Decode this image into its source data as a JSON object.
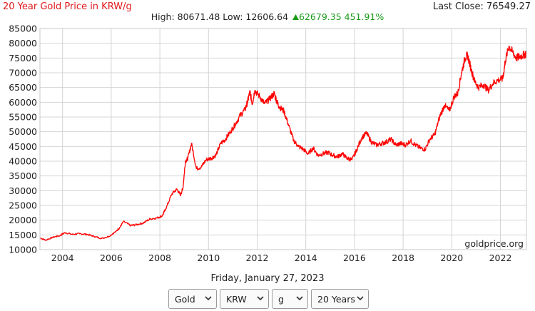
{
  "header": {
    "title": "20 Year Gold Price in KRW/g",
    "last_close": "Last Close: 76549.27",
    "high_low": "High: 80671.48 Low: 12606.64",
    "change": "62679.35 451.91%"
  },
  "chart_data": {
    "type": "line",
    "title": "20 Year Gold Price in KRW/g",
    "xlabel": "",
    "ylabel": "",
    "ylim": [
      10000,
      85000
    ],
    "xlim": [
      2003.07,
      2023.07
    ],
    "y_ticks": [
      "10000",
      "15000",
      "20000",
      "25000",
      "30000",
      "35000",
      "40000",
      "45000",
      "50000",
      "55000",
      "60000",
      "65000",
      "70000",
      "75000",
      "80000",
      "85000"
    ],
    "x_ticks": [
      "2004",
      "2006",
      "2008",
      "2010",
      "2012",
      "2014",
      "2016",
      "2018",
      "2020",
      "2022"
    ],
    "grid": true,
    "series": [
      {
        "color": "#ff0000",
        "x": [
          2003.07,
          2003.3,
          2003.6,
          2003.9,
          2004.1,
          2004.4,
          2004.7,
          2005.0,
          2005.3,
          2005.6,
          2005.9,
          2006.2,
          2006.35,
          2006.5,
          2006.8,
          2007.0,
          2007.3,
          2007.6,
          2007.9,
          2008.1,
          2008.25,
          2008.5,
          2008.7,
          2008.85,
          2008.95,
          2009.05,
          2009.15,
          2009.3,
          2009.5,
          2009.7,
          2009.9,
          2010.1,
          2010.3,
          2010.5,
          2010.7,
          2010.9,
          2011.1,
          2011.3,
          2011.5,
          2011.6,
          2011.7,
          2011.8,
          2011.9,
          2012.1,
          2012.3,
          2012.5,
          2012.7,
          2012.8,
          2012.9,
          2013.1,
          2013.3,
          2013.5,
          2013.7,
          2013.9,
          2014.1,
          2014.3,
          2014.5,
          2014.7,
          2014.9,
          2015.1,
          2015.3,
          2015.5,
          2015.7,
          2015.9,
          2016.1,
          2016.3,
          2016.5,
          2016.7,
          2016.9,
          2017.1,
          2017.3,
          2017.5,
          2017.7,
          2017.9,
          2018.1,
          2018.3,
          2018.5,
          2018.7,
          2018.9,
          2019.1,
          2019.3,
          2019.5,
          2019.7,
          2019.9,
          2020.1,
          2020.25,
          2020.4,
          2020.55,
          2020.65,
          2020.8,
          2020.95,
          2021.1,
          2021.3,
          2021.5,
          2021.7,
          2021.9,
          2022.1,
          2022.2,
          2022.35,
          2022.5,
          2022.65,
          2022.8,
          2022.95,
          2023.07
        ],
        "values": [
          14000,
          13200,
          14200,
          14800,
          15800,
          15200,
          15400,
          15200,
          14500,
          13800,
          14500,
          16200,
          17500,
          19500,
          18200,
          18400,
          19000,
          20400,
          20800,
          21500,
          24000,
          29000,
          30500,
          28500,
          31000,
          40000,
          41000,
          46000,
          37500,
          38000,
          40500,
          41000,
          42000,
          46000,
          47500,
          50000,
          52500,
          55500,
          57500,
          60000,
          63500,
          59500,
          64000,
          62000,
          59500,
          61000,
          63000,
          60500,
          58500,
          57000,
          52000,
          47000,
          45000,
          44000,
          42500,
          44500,
          42000,
          42500,
          43000,
          42000,
          41500,
          42500,
          41000,
          40500,
          44000,
          48000,
          49500,
          46500,
          45500,
          46000,
          46500,
          47500,
          45500,
          46000,
          45500,
          47000,
          45500,
          44500,
          44000,
          47500,
          49000,
          55000,
          59000,
          57000,
          62000,
          63000,
          70000,
          75000,
          76000,
          71000,
          67000,
          65000,
          66000,
          64000,
          66500,
          67500,
          68000,
          74000,
          79000,
          77000,
          75000,
          75500,
          76000,
          76549
        ]
      }
    ]
  },
  "watermark": "goldprice.org",
  "date_label": "Friday, January 27, 2023",
  "controls": {
    "metal": "Gold",
    "currency": "KRW",
    "unit": "g",
    "range": "20 Years"
  },
  "icons": {
    "change_arrow": "triangle-up-icon",
    "dropdown": "chevron-down-icon"
  }
}
